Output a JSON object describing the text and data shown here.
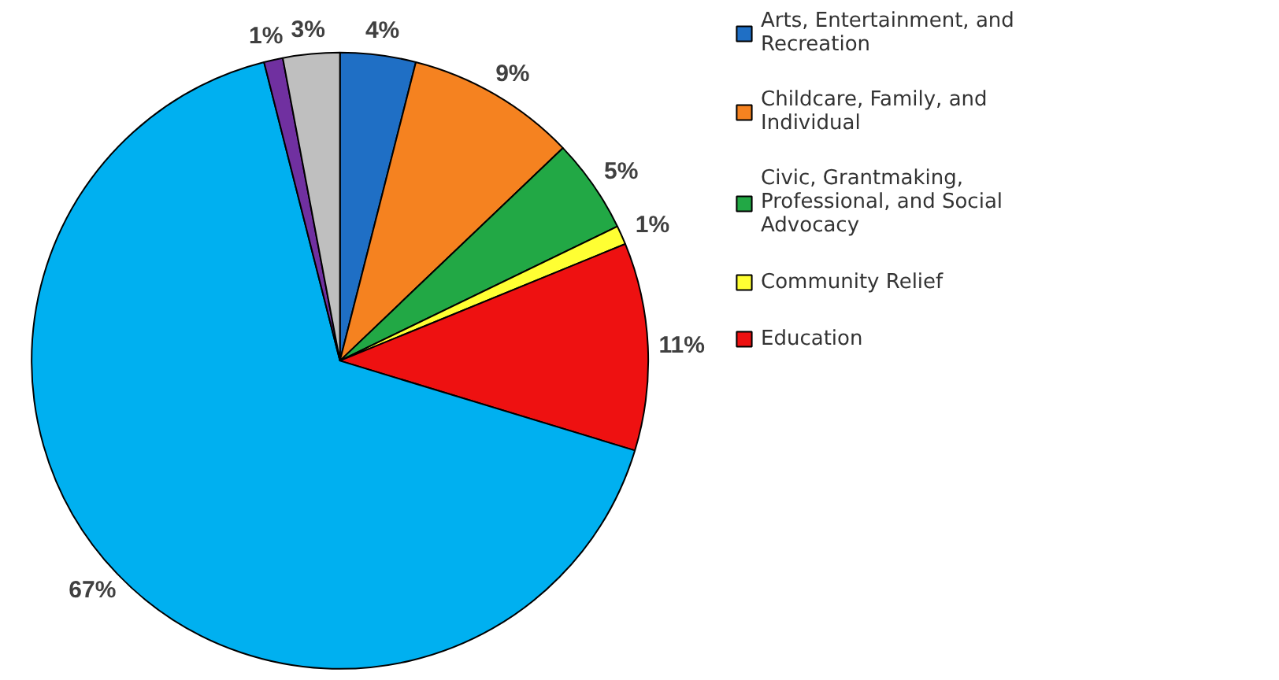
{
  "chart_data": {
    "type": "pie",
    "categories": [
      "Arts, Entertainment, and Recreation",
      "Childcare, Family, and Individual",
      "Civic, Grantmaking, Professional, and Social Advocacy",
      "Community Relief",
      "Education",
      null,
      null,
      null
    ],
    "values": [
      4,
      9,
      5,
      1,
      11,
      67,
      1,
      3
    ],
    "colors": [
      "#1f6fc5",
      "#f58220",
      "#22a845",
      "#ffff33",
      "#ee1111",
      "#00b0f0",
      "#7030a0",
      "#bfbfbf"
    ],
    "value_labels": [
      "4%",
      "9%",
      "5%",
      "1%",
      "11%",
      "67%",
      "1%",
      "3%"
    ],
    "legend": "right"
  }
}
